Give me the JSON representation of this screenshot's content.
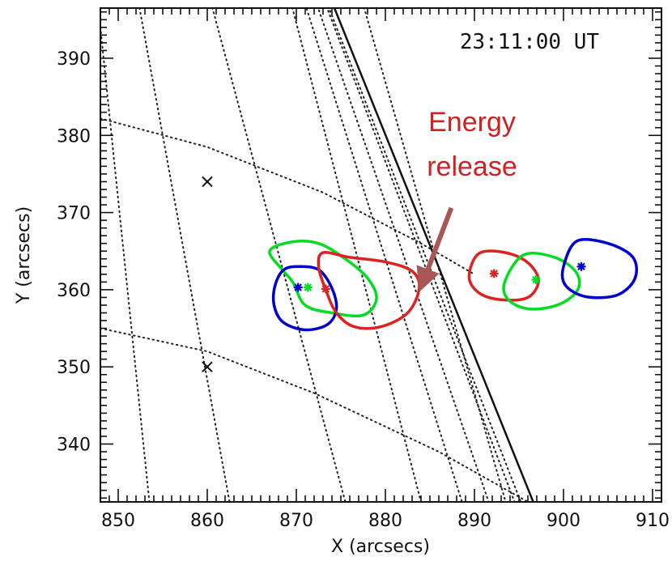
{
  "chart_data": {
    "type": "scatter",
    "xlabel": "X (arcsecs)",
    "ylabel": "Y (arcsecs)",
    "xlim": [
      848,
      911
    ],
    "ylim": [
      332.5,
      396.5
    ],
    "x_ticks": [
      850,
      860,
      870,
      880,
      890,
      900,
      910
    ],
    "y_ticks": [
      340,
      350,
      360,
      370,
      380,
      390
    ],
    "time_label": "23:11:00 UT",
    "annotation": {
      "lines": [
        "Energy",
        "release"
      ],
      "color": "#cc2222",
      "arrow_color": "#a85656",
      "arrow_from": [
        887.4,
        370.6
      ],
      "arrow_to": [
        884.0,
        360.3
      ]
    },
    "markers_x": [
      {
        "x": 860,
        "y": 374
      },
      {
        "x": 860,
        "y": 350
      }
    ],
    "limb": [
      [
        873.3,
        399.3
      ],
      [
        896.6,
        332.5
      ]
    ],
    "grid_lines": [
      [
        [
          860,
          399
        ],
        [
          875.5,
          332.5
        ]
      ],
      [
        [
          852,
          399
        ],
        [
          862.5,
          332.5
        ]
      ],
      [
        [
          848,
          394
        ],
        [
          853.5,
          332.5
        ]
      ],
      [
        [
          869,
          399
        ],
        [
          884,
          332.5
        ]
      ],
      [
        [
          877,
          399
        ],
        [
          893.5,
          332.5
        ]
      ],
      [
        [
          871,
          397
        ],
        [
          888.6,
          332.5
        ]
      ],
      [
        [
          872,
          398
        ],
        [
          891.6,
          332.5
        ]
      ],
      [
        [
          872.8,
          398.5
        ],
        [
          894.5,
          332.5
        ]
      ],
      [
        [
          873,
          398.5
        ],
        [
          895.2,
          332.5
        ]
      ],
      [
        [
          848,
          382.2
        ],
        [
          860,
          378.5
        ],
        [
          873,
          372.6
        ],
        [
          884,
          366
        ],
        [
          890,
          362
        ]
      ],
      [
        [
          848,
          355
        ],
        [
          860,
          352
        ],
        [
          872,
          346.6
        ],
        [
          886,
          339
        ],
        [
          896,
          332.5
        ]
      ]
    ],
    "series": [
      {
        "color": "#00dd22",
        "centroid": [
          871.3,
          360.3
        ],
        "contour": [
          [
            867,
            365
          ],
          [
            869.5,
            366.2
          ],
          [
            872.5,
            366
          ],
          [
            875.5,
            364
          ],
          [
            878,
            361.5
          ],
          [
            879,
            358.8
          ],
          [
            877.5,
            356.7
          ],
          [
            874,
            357
          ],
          [
            871,
            358
          ],
          [
            869.6,
            361
          ],
          [
            868.5,
            362.5
          ],
          [
            867,
            365
          ]
        ]
      },
      {
        "color": "#0000cc",
        "centroid": [
          870.2,
          360.3
        ],
        "contour": [
          [
            870,
            363
          ],
          [
            872.5,
            362.6
          ],
          [
            874,
            360.2
          ],
          [
            874.5,
            357.5
          ],
          [
            873.5,
            355.5
          ],
          [
            871,
            354.8
          ],
          [
            868.5,
            355.8
          ],
          [
            867.5,
            358
          ],
          [
            867.6,
            360.5
          ],
          [
            868.5,
            362.5
          ],
          [
            870,
            363
          ]
        ]
      },
      {
        "color": "#dd2222",
        "centroid": [
          873.3,
          360.1
        ],
        "contour": [
          [
            873,
            364.8
          ],
          [
            876,
            364.2
          ],
          [
            880,
            363.6
          ],
          [
            883,
            362.4
          ],
          [
            883.8,
            360.2
          ],
          [
            882.5,
            357
          ],
          [
            879.5,
            355.2
          ],
          [
            876.5,
            355.2
          ],
          [
            874.5,
            357
          ],
          [
            873.3,
            360
          ],
          [
            872.5,
            363
          ],
          [
            873,
            364.8
          ]
        ]
      },
      {
        "color": "#dd2222",
        "centroid": [
          892.2,
          362.1
        ],
        "contour": [
          [
            890.5,
            364.7
          ],
          [
            893.5,
            364.8
          ],
          [
            896,
            363.5
          ],
          [
            897.2,
            361.2
          ],
          [
            896,
            359
          ],
          [
            893,
            358.7
          ],
          [
            890.5,
            359.6
          ],
          [
            889.4,
            361.7
          ],
          [
            890.5,
            364.7
          ]
        ]
      },
      {
        "color": "#00dd22",
        "centroid": [
          896.9,
          361.3
        ],
        "contour": [
          [
            895.5,
            364.5
          ],
          [
            899,
            364.2
          ],
          [
            901.4,
            362.3
          ],
          [
            901.6,
            360
          ],
          [
            899.5,
            358.1
          ],
          [
            896.2,
            357.5
          ],
          [
            893.8,
            358.7
          ],
          [
            893.4,
            361
          ],
          [
            895.5,
            364.5
          ]
        ]
      },
      {
        "color": "#0000cc",
        "centroid": [
          902,
          363
        ],
        "contour": [
          [
            901.5,
            366.3
          ],
          [
            905,
            366
          ],
          [
            907.8,
            364.2
          ],
          [
            908,
            361.4
          ],
          [
            906,
            359.3
          ],
          [
            902.5,
            359.1
          ],
          [
            900.2,
            360.6
          ],
          [
            900,
            363
          ],
          [
            901.5,
            366.3
          ]
        ]
      }
    ]
  }
}
